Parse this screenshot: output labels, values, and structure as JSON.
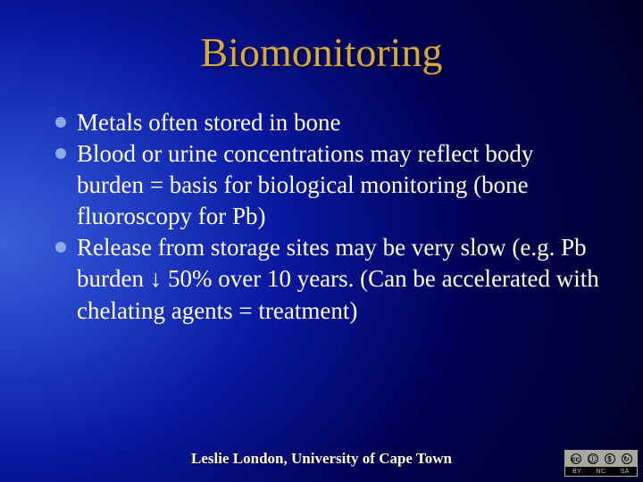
{
  "title": "Biomonitoring",
  "title_color": "#d8a840",
  "title_fontsize": 46,
  "text_color": "#ffffff",
  "body_fontsize": 27,
  "bullet_color": "#8fa8e8",
  "background": {
    "type": "radial-gradient",
    "center": "left-center",
    "stops": [
      "#3a5fd8",
      "#2442c8",
      "#0818a0",
      "#000050",
      "#000018"
    ]
  },
  "bullets": [
    "Metals often stored in bone",
    "Blood or urine concentrations may reflect body burden = basis for biological monitoring (bone fluoroscopy for Pb)",
    "Release from storage sites may be very slow (e.g. Pb burden ↓ 50% over 10 years. (Can be accelerated with chelating agents = treatment)"
  ],
  "footer": "Leslie London, University of Cape Town",
  "footer_fontsize": 17,
  "cc": {
    "labels": [
      "BY",
      "NC",
      "SA"
    ],
    "symbols": [
      "cc",
      "ⓘ",
      "$",
      "↻"
    ]
  }
}
